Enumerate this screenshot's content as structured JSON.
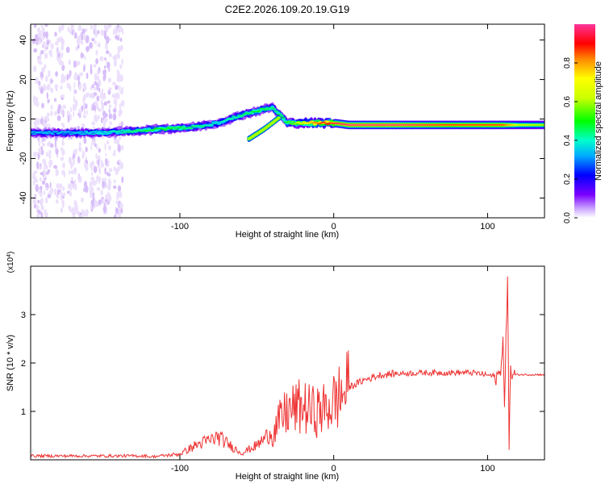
{
  "chart_data": [
    {
      "type": "heatmap",
      "title": "C2E2.2026.109.20.19.G19",
      "xlabel": "Height of straight line (km)",
      "ylabel": "Frequency (Hz)",
      "xlim": [
        -197,
        137
      ],
      "ylim": [
        -50,
        48
      ],
      "xticks": [
        -100,
        0,
        100
      ],
      "yticks": [
        -40,
        -20,
        0,
        20,
        40
      ],
      "grid": false,
      "colorbar": {
        "label": "Normalized spectral amplitude",
        "range": [
          0,
          1
        ],
        "ticks": [
          "0.0",
          "0.2",
          "0.4",
          "0.6",
          "0.8"
        ]
      },
      "ridge": {
        "x": [
          -197,
          -170,
          -150,
          -130,
          -110,
          -90,
          -75,
          -60,
          -50,
          -40,
          -30,
          -20,
          -10,
          0,
          10,
          40,
          80,
          90,
          100,
          110,
          115,
          120,
          137
        ],
        "y": [
          -7,
          -7,
          -7,
          -6,
          -5,
          -4,
          -2,
          2,
          4,
          6,
          -2,
          -2,
          -2,
          -2,
          -3,
          -3,
          -3,
          -3,
          -3,
          -3,
          -3,
          -3,
          -3
        ],
        "amplitude": [
          0.35,
          0.35,
          0.4,
          0.45,
          0.5,
          0.45,
          0.4,
          0.45,
          0.5,
          0.45,
          0.5,
          0.7,
          0.85,
          0.95,
          1.0,
          1.0,
          0.9,
          0.9,
          0.9,
          0.9,
          0.8,
          0.7,
          0.65
        ]
      },
      "branches": [
        {
          "x": [
            -55,
            -45,
            -35
          ],
          "y": [
            -10,
            -5,
            1
          ]
        }
      ]
    },
    {
      "type": "line",
      "xlabel": "Height of straight line (km)",
      "ylabel": "SNR (10 * v/v)",
      "y_multiplier": "(x10^4)",
      "y_multiplier_base": "(x10",
      "y_multiplier_exp": "4",
      "y_multiplier_close": ")",
      "xlim": [
        -197,
        137
      ],
      "ylim": [
        0,
        4
      ],
      "xticks": [
        -100,
        0,
        100
      ],
      "yticks": [
        1,
        2,
        3
      ],
      "grid": false,
      "color": "#ee3333",
      "series": [
        {
          "x": [
            -197,
            -180,
            -160,
            -140,
            -120,
            -100,
            -90,
            -80,
            -75,
            -70,
            -60,
            -50,
            -40,
            -35,
            -30,
            -25,
            -20,
            -15,
            -10,
            -5,
            0,
            5,
            10,
            20,
            30,
            40,
            60,
            80,
            90,
            95,
            100,
            105,
            108,
            110,
            111,
            113,
            114,
            115,
            117,
            120,
            130,
            137
          ],
          "y": [
            0.05,
            0.05,
            0.05,
            0.05,
            0.05,
            0.1,
            0.25,
            0.35,
            0.4,
            0.3,
            0.12,
            0.25,
            0.5,
            0.8,
            1.0,
            1.05,
            1.1,
            1.0,
            1.0,
            1.05,
            1.2,
            1.35,
            1.5,
            1.65,
            1.75,
            1.78,
            1.8,
            1.8,
            1.8,
            1.78,
            1.75,
            1.72,
            1.75,
            2.5,
            1.0,
            3.9,
            0.4,
            1.8,
            1.75,
            1.76,
            1.76,
            1.76
          ]
        }
      ]
    }
  ]
}
